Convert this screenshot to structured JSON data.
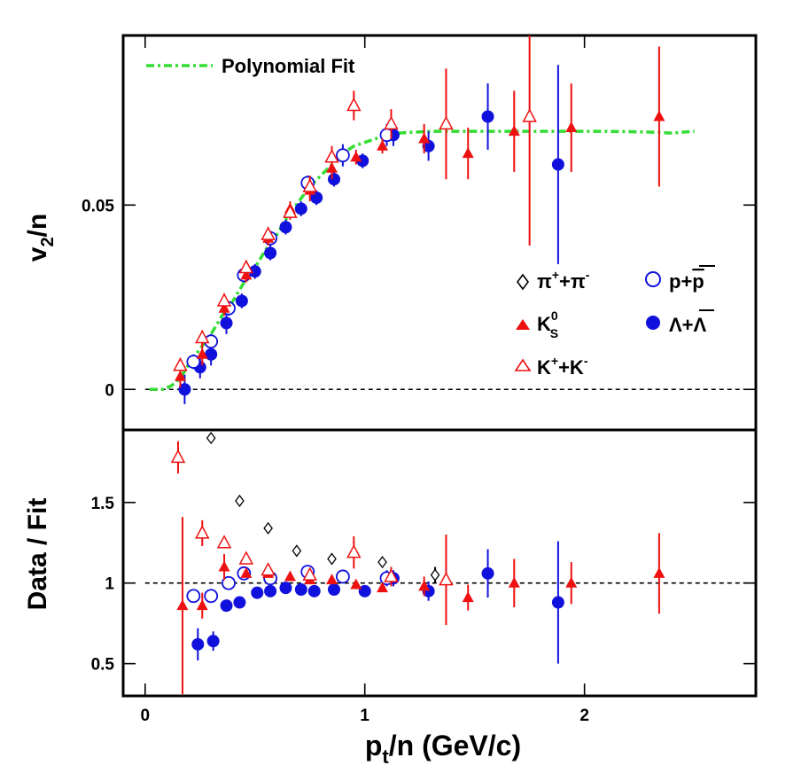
{
  "chart_data": [
    {
      "type": "scatter",
      "panel": "top",
      "xlabel": "p_t/n (GeV/c)",
      "ylabel": "v_2/n",
      "xlim": [
        -0.1,
        2.78
      ],
      "ylim": [
        -0.011,
        0.096
      ],
      "yticks": [
        0,
        0.05
      ],
      "ytick_labels": [
        "0",
        "0.05"
      ],
      "reference_line": 0,
      "fit": {
        "name": "Polynomial Fit",
        "color": "#33dd33",
        "points": [
          [
            0.02,
            0.0
          ],
          [
            0.08,
            0.0
          ],
          [
            0.12,
            0.001
          ],
          [
            0.16,
            0.003
          ],
          [
            0.2,
            0.007
          ],
          [
            0.25,
            0.011
          ],
          [
            0.3,
            0.015
          ],
          [
            0.35,
            0.02
          ],
          [
            0.4,
            0.024
          ],
          [
            0.45,
            0.029
          ],
          [
            0.5,
            0.033
          ],
          [
            0.55,
            0.038
          ],
          [
            0.6,
            0.042
          ],
          [
            0.65,
            0.047
          ],
          [
            0.7,
            0.051
          ],
          [
            0.75,
            0.055
          ],
          [
            0.8,
            0.058
          ],
          [
            0.85,
            0.061
          ],
          [
            0.9,
            0.064
          ],
          [
            0.95,
            0.066
          ],
          [
            1.0,
            0.067
          ],
          [
            1.05,
            0.068
          ],
          [
            1.1,
            0.069
          ],
          [
            1.15,
            0.0695
          ],
          [
            1.2,
            0.0697
          ],
          [
            1.3,
            0.07
          ],
          [
            1.5,
            0.07
          ],
          [
            1.7,
            0.07
          ],
          [
            1.9,
            0.07
          ],
          [
            2.1,
            0.07
          ],
          [
            2.3,
            0.0698
          ],
          [
            2.4,
            0.0695
          ],
          [
            2.45,
            0.0698
          ],
          [
            2.5,
            0.07
          ]
        ]
      },
      "series": [
        {
          "name": "Λ+Λ̄",
          "marker": "circle-filled",
          "color": "#1111dd",
          "points": [
            [
              0.18,
              0.0,
              0.004
            ],
            [
              0.25,
              0.006,
              0.003
            ],
            [
              0.3,
              0.0095,
              0.003
            ],
            [
              0.37,
              0.018,
              0.003
            ],
            [
              0.44,
              0.024,
              0.002
            ],
            [
              0.5,
              0.032,
              0.002
            ],
            [
              0.57,
              0.037,
              0.002
            ],
            [
              0.64,
              0.044,
              0.002
            ],
            [
              0.71,
              0.049,
              0.002
            ],
            [
              0.78,
              0.052,
              0.002
            ],
            [
              0.86,
              0.057,
              0.002
            ],
            [
              0.99,
              0.062,
              0.002
            ],
            [
              1.13,
              0.069,
              0.003
            ],
            [
              1.29,
              0.066,
              0.004
            ],
            [
              1.56,
              0.074,
              0.009
            ],
            [
              1.88,
              0.061,
              0.027
            ]
          ]
        },
        {
          "name": "p+p̄",
          "marker": "circle-open",
          "color": "#1111dd",
          "points": [
            [
              0.22,
              0.0075,
              0.002
            ],
            [
              0.3,
              0.013,
              0.002
            ],
            [
              0.38,
              0.022,
              0.002
            ],
            [
              0.45,
              0.031,
              0.002
            ],
            [
              0.57,
              0.041,
              0.002
            ],
            [
              0.74,
              0.056,
              0.002
            ],
            [
              0.9,
              0.0635,
              0.003
            ],
            [
              1.1,
              0.069,
              0.003
            ]
          ]
        },
        {
          "name": "K_S^0",
          "marker": "triangle-filled",
          "color": "#ee1111",
          "points": [
            [
              0.16,
              0.0035,
              0.003
            ],
            [
              0.26,
              0.0095,
              0.003
            ],
            [
              0.36,
              0.022,
              0.002
            ],
            [
              0.46,
              0.031,
              0.002
            ],
            [
              0.56,
              0.041,
              0.002
            ],
            [
              0.66,
              0.049,
              0.002
            ],
            [
              0.75,
              0.054,
              0.003
            ],
            [
              0.85,
              0.06,
              0.003
            ],
            [
              0.96,
              0.063,
              0.002
            ],
            [
              1.08,
              0.066,
              0.002
            ],
            [
              1.27,
              0.068,
              0.004
            ],
            [
              1.47,
              0.064,
              0.007
            ],
            [
              1.68,
              0.07,
              0.011
            ],
            [
              1.94,
              0.071,
              0.012
            ],
            [
              2.34,
              0.074,
              0.019
            ]
          ]
        },
        {
          "name": "K⁺+K⁻",
          "marker": "triangle-open",
          "color": "#ee1111",
          "points": [
            [
              0.16,
              0.0065,
              0.002
            ],
            [
              0.26,
              0.014,
              0.002
            ],
            [
              0.36,
              0.024,
              0.002
            ],
            [
              0.46,
              0.033,
              0.002
            ],
            [
              0.56,
              0.042,
              0.002
            ],
            [
              0.66,
              0.048,
              0.002
            ],
            [
              0.75,
              0.055,
              0.003
            ],
            [
              0.85,
              0.063,
              0.003
            ],
            [
              0.95,
              0.077,
              0.004
            ],
            [
              1.12,
              0.072,
              0.004
            ],
            [
              1.37,
              0.072,
              0.015
            ],
            [
              1.75,
              0.074,
              0.035
            ]
          ]
        }
      ]
    },
    {
      "type": "scatter",
      "panel": "bottom",
      "xlabel": "p_t/n (GeV/c)",
      "ylabel": "Data / Fit",
      "xlim": [
        -0.1,
        2.78
      ],
      "ylim": [
        0.3,
        1.95
      ],
      "yticks": [
        0.5,
        1,
        1.5
      ],
      "ytick_labels": [
        "0.5",
        "1",
        "1.5"
      ],
      "xticks": [
        0,
        1,
        2
      ],
      "xtick_labels": [
        "0",
        "1",
        "2"
      ],
      "reference_line": 1,
      "series": [
        {
          "name": "π⁺+π⁻",
          "marker": "diamond-open",
          "color": "#000000",
          "points": [
            [
              0.3,
              1.9,
              0.0
            ],
            [
              0.43,
              1.51,
              0.0
            ],
            [
              0.56,
              1.34,
              0.0
            ],
            [
              0.69,
              1.2,
              0.0
            ],
            [
              0.85,
              1.15,
              0.0
            ],
            [
              1.08,
              1.13,
              0.0
            ],
            [
              1.32,
              1.05,
              0.05
            ]
          ]
        },
        {
          "name": "Λ+Λ̄",
          "marker": "circle-filled",
          "color": "#1111dd",
          "points": [
            [
              0.24,
              0.62,
              0.1
            ],
            [
              0.31,
              0.64,
              0.06
            ],
            [
              0.37,
              0.86,
              0.0
            ],
            [
              0.43,
              0.88,
              0.0
            ],
            [
              0.51,
              0.94,
              0.0
            ],
            [
              0.57,
              0.95,
              0.0
            ],
            [
              0.64,
              0.97,
              0.0
            ],
            [
              0.71,
              0.96,
              0.0
            ],
            [
              0.77,
              0.95,
              0.0
            ],
            [
              0.86,
              0.96,
              0.0
            ],
            [
              1.0,
              0.95,
              0.0
            ],
            [
              1.13,
              1.03,
              0.05
            ],
            [
              1.29,
              0.95,
              0.06
            ],
            [
              1.56,
              1.06,
              0.15
            ],
            [
              1.88,
              0.88,
              0.38
            ]
          ]
        },
        {
          "name": "p+p̄",
          "marker": "circle-open",
          "color": "#1111dd",
          "points": [
            [
              0.22,
              0.92,
              0.04
            ],
            [
              0.3,
              0.92,
              0.04
            ],
            [
              0.38,
              1.0,
              0.0
            ],
            [
              0.45,
              1.06,
              0.0
            ],
            [
              0.57,
              1.03,
              0.0
            ],
            [
              0.74,
              1.07,
              0.0
            ],
            [
              0.9,
              1.04,
              0.0
            ],
            [
              1.1,
              1.03,
              0.05
            ]
          ]
        },
        {
          "name": "K_S^0",
          "marker": "triangle-filled",
          "color": "#ee1111",
          "points": [
            [
              0.17,
              0.86,
              0.55
            ],
            [
              0.26,
              0.86,
              0.08
            ],
            [
              0.36,
              1.1,
              0.08
            ],
            [
              0.46,
              1.06,
              0.0
            ],
            [
              0.56,
              1.06,
              0.0
            ],
            [
              0.66,
              1.04,
              0.0
            ],
            [
              0.75,
              1.02,
              0.0
            ],
            [
              0.85,
              1.02,
              0.0
            ],
            [
              0.96,
              0.99,
              0.0
            ],
            [
              1.08,
              0.97,
              0.0
            ],
            [
              1.27,
              0.98,
              0.06
            ],
            [
              1.47,
              0.91,
              0.08
            ],
            [
              1.68,
              1.0,
              0.15
            ],
            [
              1.94,
              1.0,
              0.13
            ],
            [
              2.34,
              1.06,
              0.25
            ]
          ]
        },
        {
          "name": "K⁺+K⁻",
          "marker": "triangle-open",
          "color": "#ee1111",
          "points": [
            [
              0.15,
              1.78,
              0.1
            ],
            [
              0.26,
              1.31,
              0.08
            ],
            [
              0.36,
              1.25,
              0.0
            ],
            [
              0.46,
              1.15,
              0.0
            ],
            [
              0.56,
              1.08,
              0.0
            ],
            [
              0.75,
              1.05,
              0.0
            ],
            [
              0.95,
              1.19,
              0.1
            ],
            [
              1.12,
              1.04,
              0.06
            ],
            [
              1.37,
              1.02,
              0.28
            ]
          ]
        }
      ]
    }
  ],
  "legend": {
    "fit_label": "Polynomial Fit",
    "pion": {
      "base": "π",
      "sup1": "+",
      "mid": "+π",
      "sup2": "-"
    },
    "proton": {
      "text": "p+",
      "bar": "p"
    },
    "ks": {
      "base": "K",
      "sub": "S",
      "sup": "0"
    },
    "lambda": {
      "text": "Λ+",
      "bar": "Λ"
    },
    "kaon": {
      "base": "K",
      "sup1": "+",
      "mid": "+K",
      "sup2": "-"
    }
  },
  "axes": {
    "top_ylabel": {
      "base": "v",
      "sub": "2",
      "rest": "/n"
    },
    "bottom_ylabel": "Data / Fit",
    "xlabel": {
      "base": "p",
      "sub": "t",
      "rest": "/n (GeV/c)"
    }
  }
}
